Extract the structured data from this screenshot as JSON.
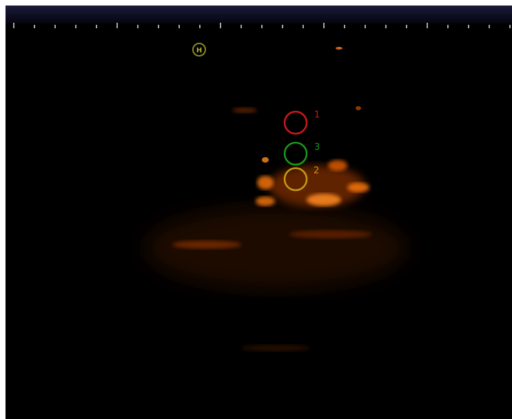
{
  "marker": {
    "label": "H"
  },
  "rois": [
    {
      "label": "1",
      "color": "#d01818"
    },
    {
      "label": "3",
      "color": "#1a9a1a"
    },
    {
      "label": "2",
      "color": "#c89a10"
    }
  ]
}
